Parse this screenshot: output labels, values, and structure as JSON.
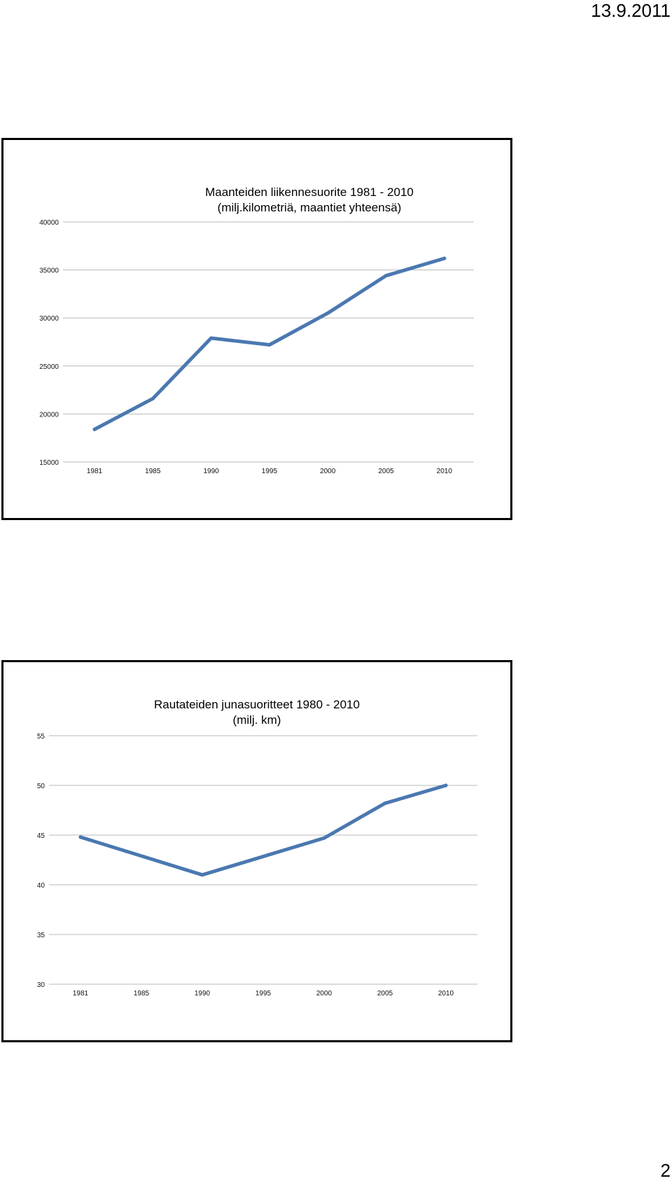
{
  "header": {
    "date": "13.9.2011"
  },
  "footer": {
    "page_number": "2"
  },
  "colors": {
    "series": "#4a78b0",
    "grid": "#b8b8b8"
  },
  "chart_data": [
    {
      "type": "line",
      "title_line1": "Maanteiden liikennesuorite 1981 - 2010",
      "title_line2": "(milj.kilometriä, maantiet yhteensä)",
      "categories": [
        "1981",
        "1985",
        "1990",
        "1995",
        "2000",
        "2005",
        "2010"
      ],
      "yticks": [
        15000,
        20000,
        25000,
        30000,
        35000,
        40000
      ],
      "ylim": [
        15000,
        40000
      ],
      "grid": true,
      "series": [
        {
          "values": [
            18400,
            21600,
            27900,
            27200,
            30500,
            34400,
            36200
          ]
        }
      ]
    },
    {
      "type": "line",
      "title_line1": "Rautateiden junasuoritteet 1980 - 2010",
      "title_line2": "(milj. km)",
      "categories": [
        "1981",
        "1985",
        "1990",
        "1995",
        "2000",
        "2005",
        "2010"
      ],
      "yticks": [
        30,
        35,
        40,
        45,
        50,
        55
      ],
      "ylim": [
        30,
        55
      ],
      "grid": true,
      "series": [
        {
          "values": [
            44.8,
            null,
            41.0,
            null,
            44.7,
            48.2,
            50.0
          ]
        }
      ]
    }
  ]
}
